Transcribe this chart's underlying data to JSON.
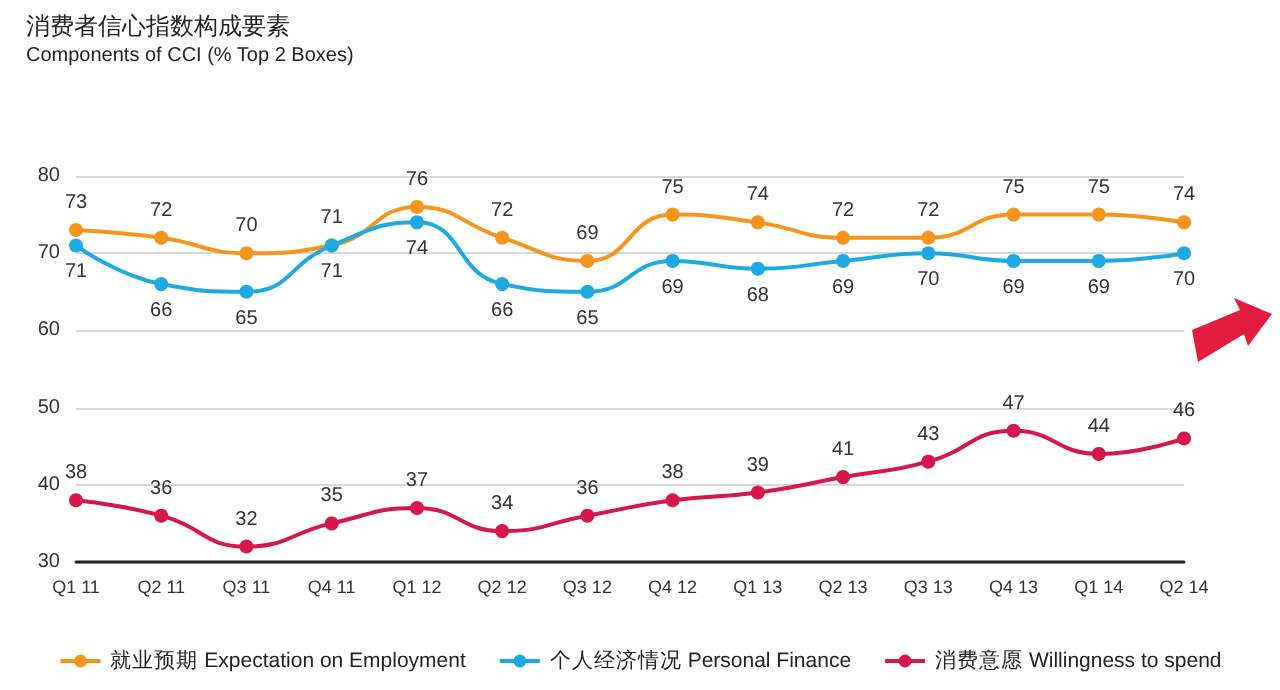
{
  "chart_data": {
    "type": "line",
    "title": "消费者信心指数构成要素",
    "subtitle": "Components of CCI (% Top 2 Boxes)",
    "categories": [
      "Q1 11",
      "Q2 11",
      "Q3 11",
      "Q4 11",
      "Q1 12",
      "Q2 12",
      "Q3 12",
      "Q4 12",
      "Q1 13",
      "Q2 13",
      "Q3 13",
      "Q4 13",
      "Q1 14",
      "Q2 14"
    ],
    "series": [
      {
        "name": "就业预期 Expectation on Employment",
        "color": "#f7941d",
        "values": [
          73,
          72,
          70,
          71,
          76,
          72,
          69,
          75,
          74,
          72,
          72,
          75,
          75,
          74
        ]
      },
      {
        "name": "个人经济情况 Personal Finance",
        "color": "#1fa9e1",
        "values": [
          71,
          66,
          65,
          71,
          74,
          66,
          65,
          69,
          68,
          69,
          70,
          69,
          69,
          70
        ]
      },
      {
        "name": "消费意愿 Willingness to spend",
        "color": "#d6174b",
        "values": [
          38,
          36,
          32,
          35,
          37,
          34,
          36,
          38,
          39,
          41,
          43,
          47,
          44,
          46
        ]
      }
    ],
    "ylim": [
      30,
      80
    ],
    "yticks": [
      30,
      40,
      50,
      60,
      70,
      80
    ],
    "grid": "y",
    "legend": "bottom",
    "marker": "circle",
    "line_style": "solid",
    "data_labels": true
  }
}
